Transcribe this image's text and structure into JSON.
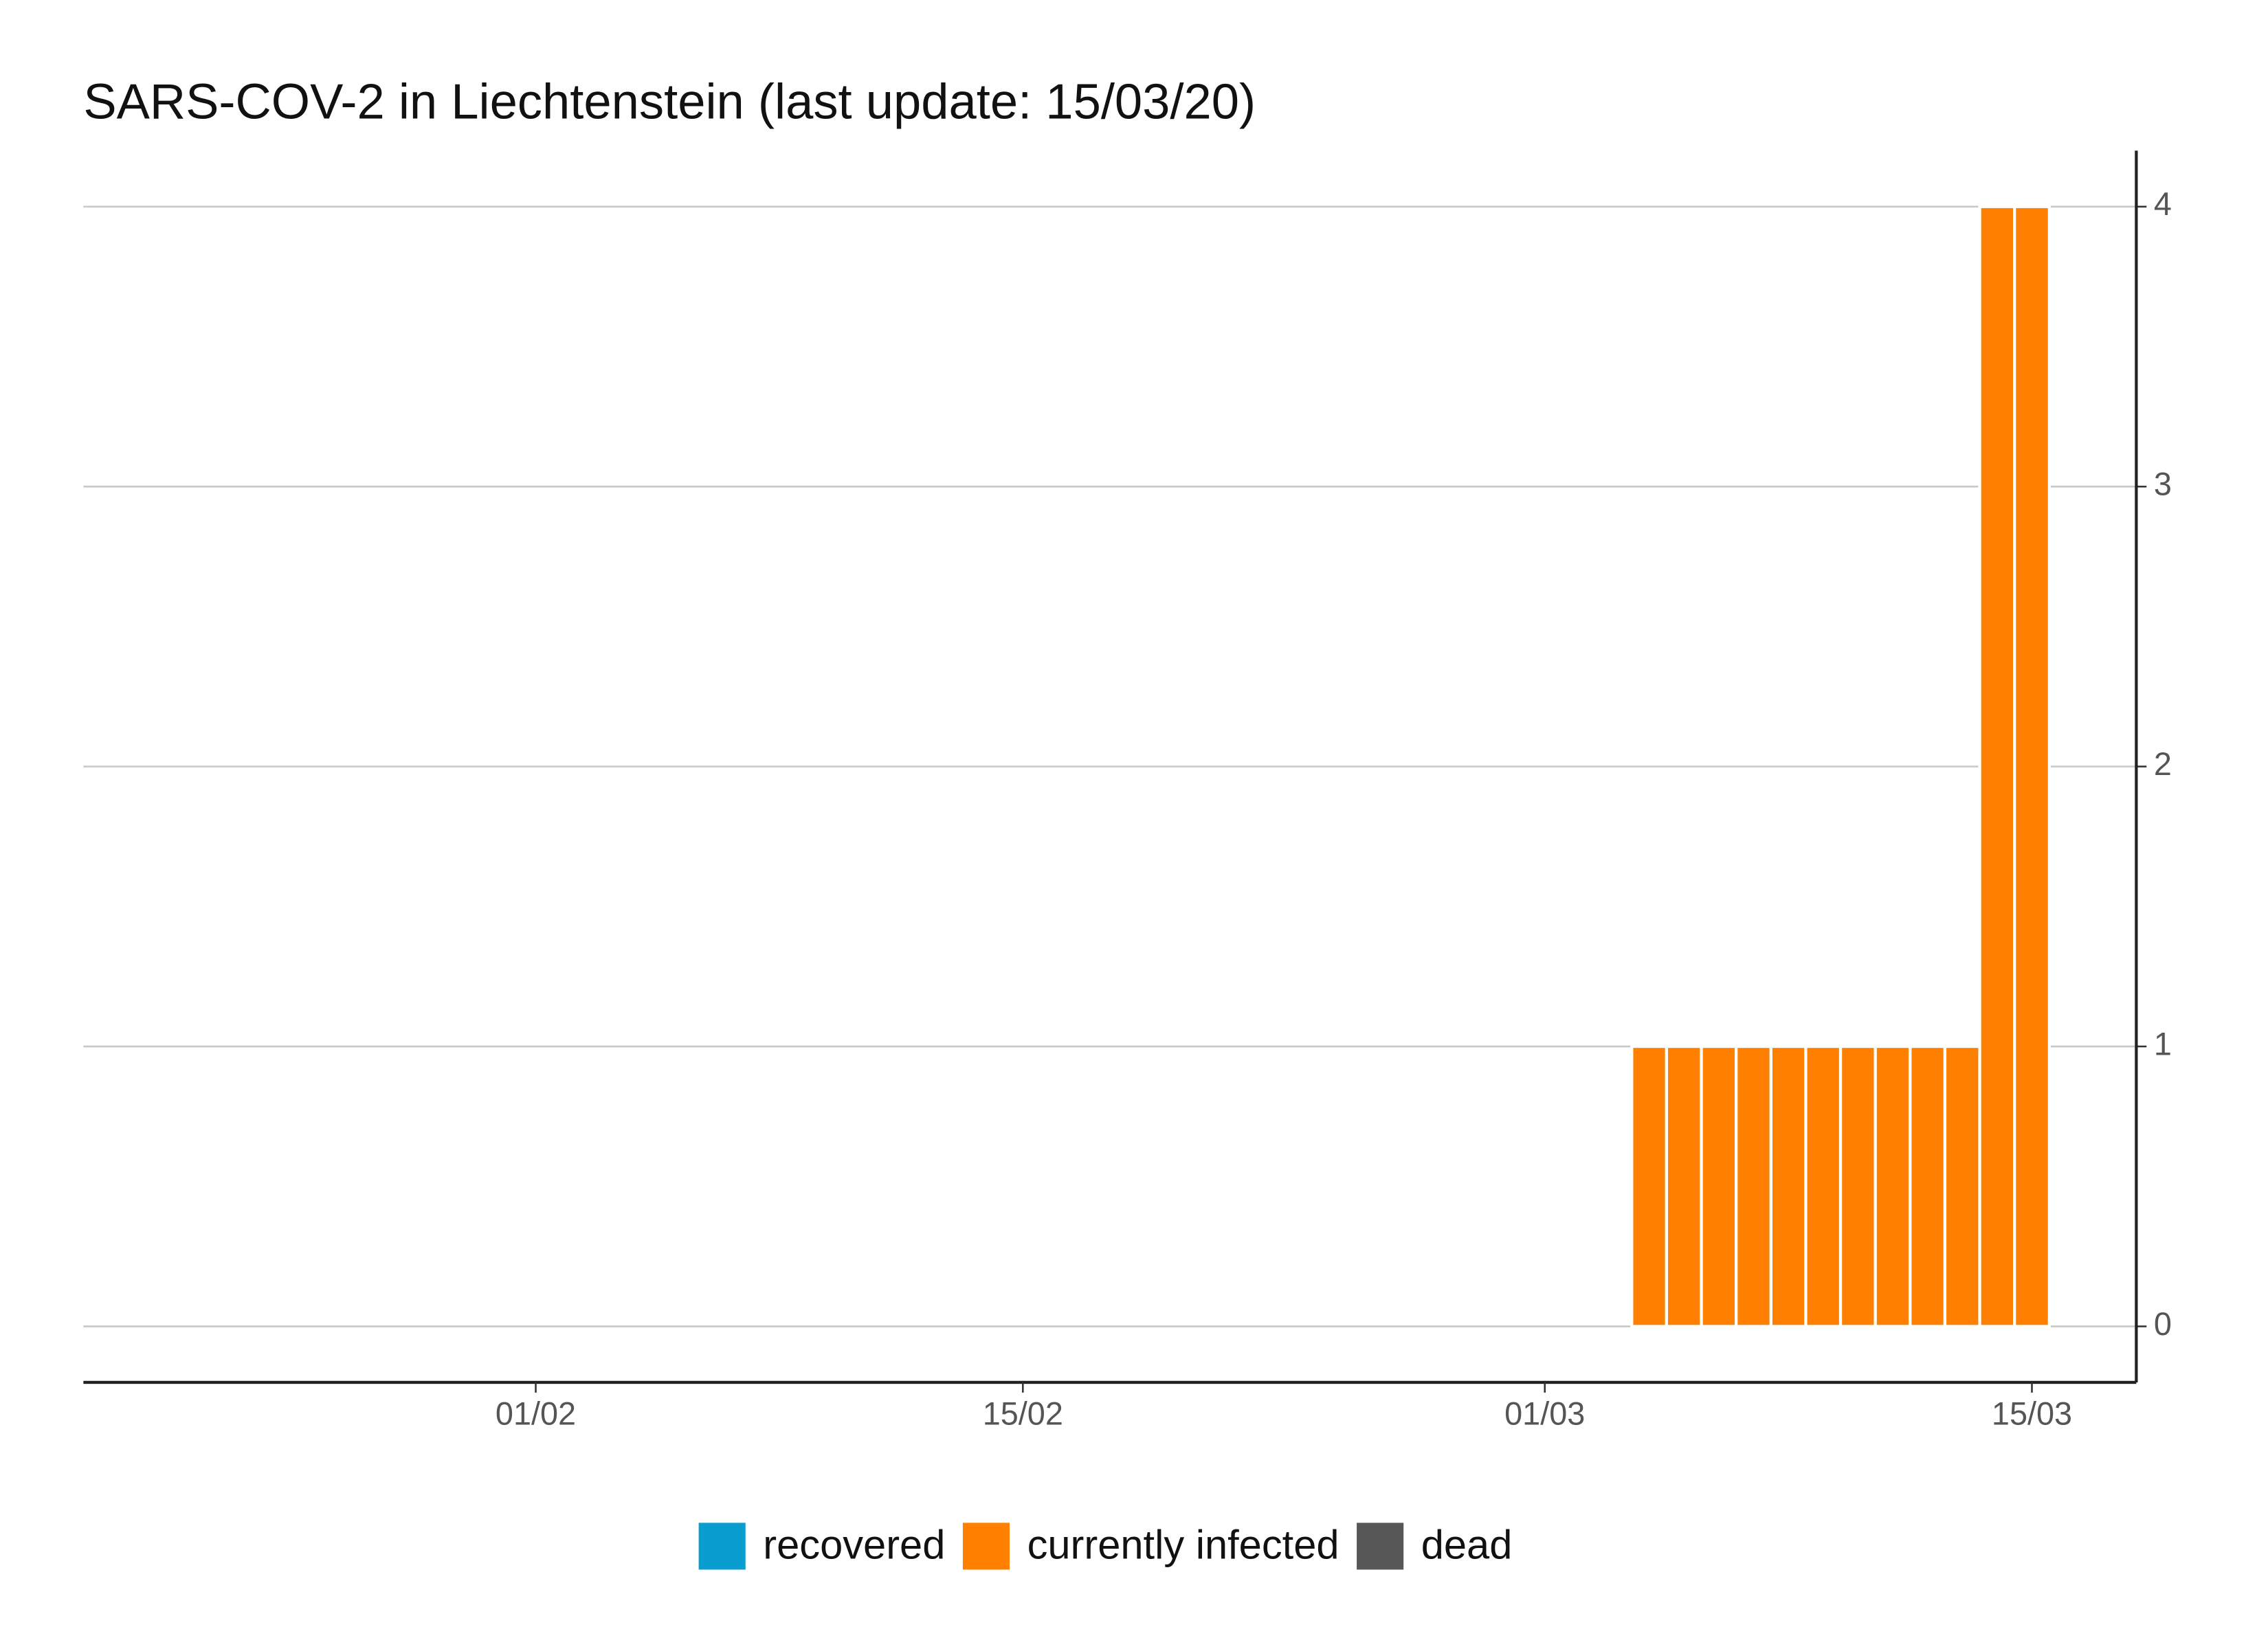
{
  "chart_data": {
    "type": "bar",
    "stacked": true,
    "title": "SARS-COV-2 in Liechtenstein (last update: 15/03/20)",
    "x": [
      "04/03",
      "05/03",
      "06/03",
      "07/03",
      "08/03",
      "09/03",
      "10/03",
      "11/03",
      "12/03",
      "13/03",
      "14/03",
      "15/03"
    ],
    "series": [
      {
        "name": "recovered",
        "color": "#0a9dd0",
        "values": [
          0,
          0,
          0,
          0,
          0,
          0,
          0,
          0,
          0,
          0,
          0,
          0
        ]
      },
      {
        "name": "currently infected",
        "color": "#ff8000",
        "values": [
          1,
          1,
          1,
          1,
          1,
          1,
          1,
          1,
          1,
          1,
          4,
          4
        ]
      },
      {
        "name": "dead",
        "color": "#575757",
        "values": [
          0,
          0,
          0,
          0,
          0,
          0,
          0,
          0,
          0,
          0,
          0,
          0
        ]
      }
    ],
    "xlim": [
      "19/01",
      "18/03"
    ],
    "xticks": [
      "01/02",
      "15/02",
      "01/03",
      "15/03"
    ],
    "ylim": [
      -0.2,
      4.2
    ],
    "yticks": [
      0,
      1,
      2,
      3,
      4
    ],
    "y_axis_side": "right",
    "grid": true,
    "legend_position": "bottom"
  }
}
